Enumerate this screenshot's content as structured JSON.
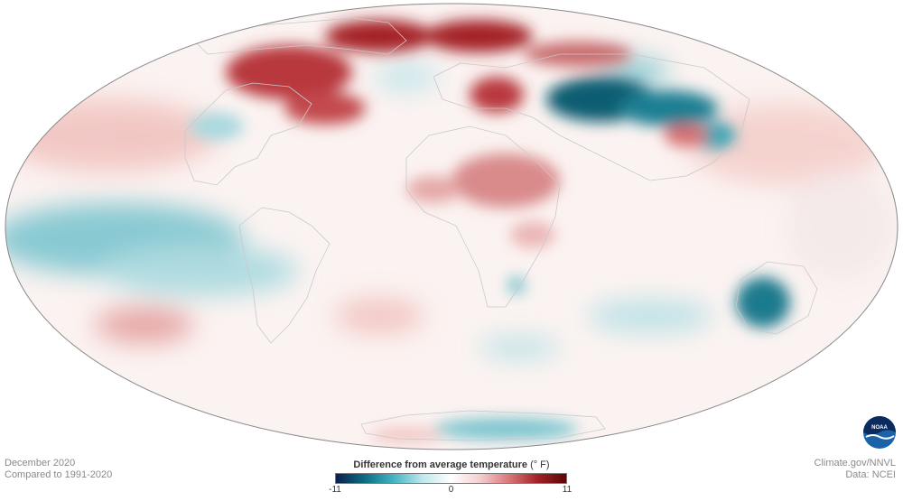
{
  "map": {
    "projection": "mollweide",
    "variable": "temperature anomaly"
  },
  "info": {
    "month": "December 2020",
    "baseline": "Compared to 1991-2020"
  },
  "credits": {
    "site": "Climate.gov/NNVL",
    "data": "Data: NCEI"
  },
  "legend": {
    "title": "Difference from average temperature",
    "unit": "(° F)",
    "min_label": "-11",
    "mid_label": "0",
    "max_label": "11",
    "min": -11,
    "max": 11,
    "colors": [
      "#0b1f4e",
      "#0e6c82",
      "#44b4c4",
      "#bfe7ec",
      "#ffffff",
      "#f4cfcf",
      "#d9787a",
      "#a42227",
      "#5a0607"
    ]
  },
  "logo": {
    "name": "noaa-logo",
    "text": "NOAA"
  }
}
